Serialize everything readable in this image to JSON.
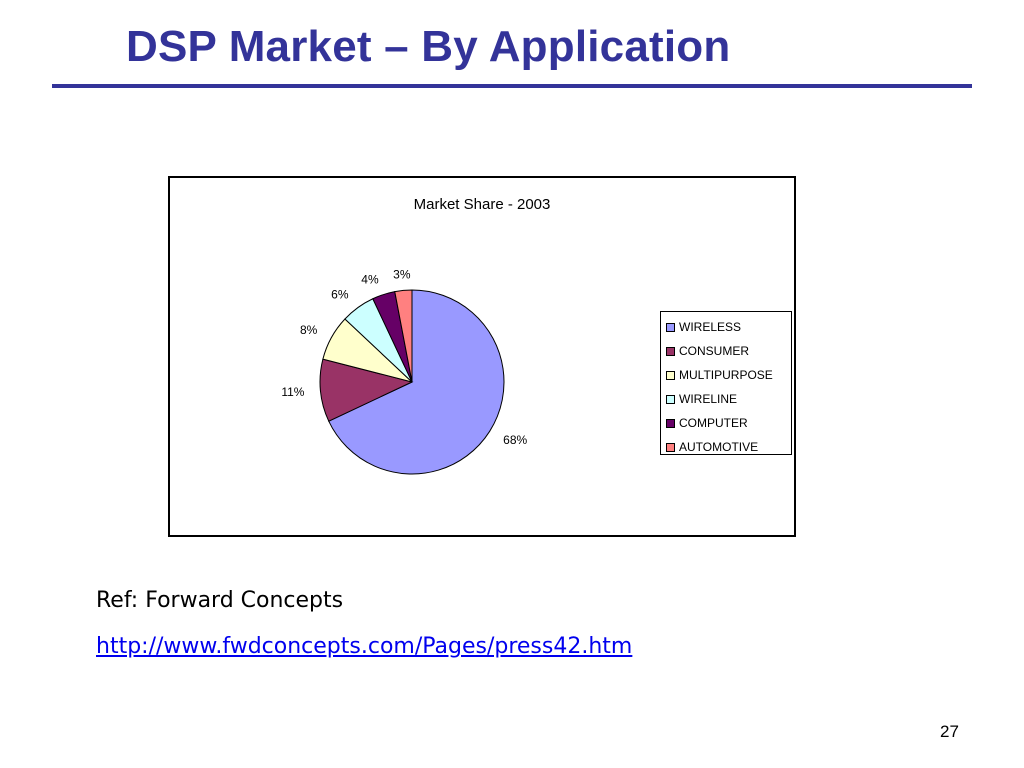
{
  "slide": {
    "title": "DSP Market – By Application",
    "ref_label": "Ref: Forward Concepts",
    "ref_url": "http://www.fwdconcepts.com/Pages/press42.htm",
    "page_number": "27"
  },
  "colors": {
    "title": "#333399",
    "link": "#0000ee"
  },
  "chart_data": {
    "type": "pie",
    "title": "Market Share - 2003",
    "legend_position": "right",
    "slices": [
      {
        "label": "WIRELESS",
        "value": 68,
        "value_label": "68%",
        "color": "#9999ff"
      },
      {
        "label": "CONSUMER",
        "value": 11,
        "value_label": "11%",
        "color": "#993366"
      },
      {
        "label": "MULTIPURPOSE",
        "value": 8,
        "value_label": "8%",
        "color": "#ffffcc"
      },
      {
        "label": "WIRELINE",
        "value": 6,
        "value_label": "6%",
        "color": "#ccffff"
      },
      {
        "label": "COMPUTER",
        "value": 4,
        "value_label": "4%",
        "color": "#660066"
      },
      {
        "label": "AUTOMOTIVE",
        "value": 3,
        "value_label": "3%",
        "color": "#ff8080"
      }
    ]
  }
}
